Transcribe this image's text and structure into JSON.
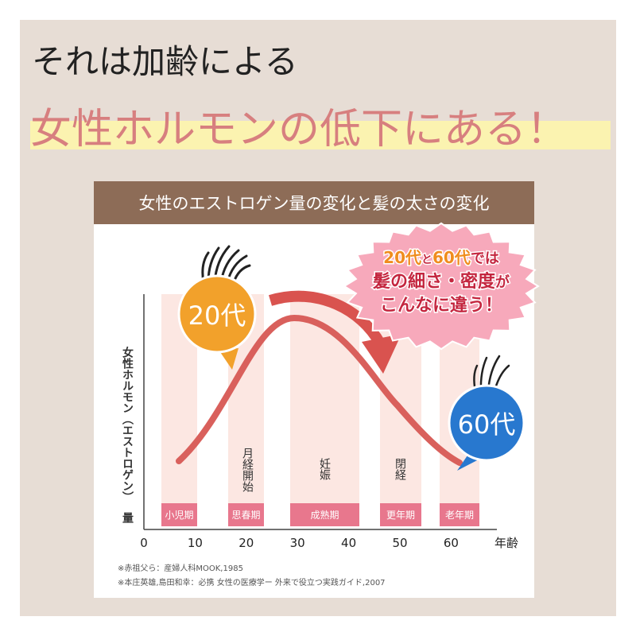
{
  "heading": {
    "line1": "それは加齢による",
    "line2": "女性ホルモンの低下にある！"
  },
  "card": {
    "title": "女性のエストロゲン量の変化と髪の太さの変化",
    "y_label": "女性ホルモン（エストロゲン）",
    "y_label_end": "量",
    "x_unit": "年齢",
    "x_ticks": [
      0,
      10,
      20,
      30,
      40,
      50,
      60
    ],
    "stages": [
      "小児期",
      "思春期",
      "成熟期",
      "更年期",
      "老年期"
    ],
    "events": [
      "月経開始",
      "妊娠",
      "閉経"
    ],
    "badge_young": "20代",
    "badge_old": "60代",
    "callout": [
      [
        "20代",
        "と",
        "60代",
        "では"
      ],
      [
        "髪の細さ・密度",
        "が"
      ],
      [
        "こんなに違う！"
      ]
    ],
    "notes": [
      "※赤祖父ら：産婦人科MOOK,1985",
      "※本庄英雄,島田和幸：必携 女性の医療学ー 外来で役立つ実践ガイド,2007"
    ]
  }
}
